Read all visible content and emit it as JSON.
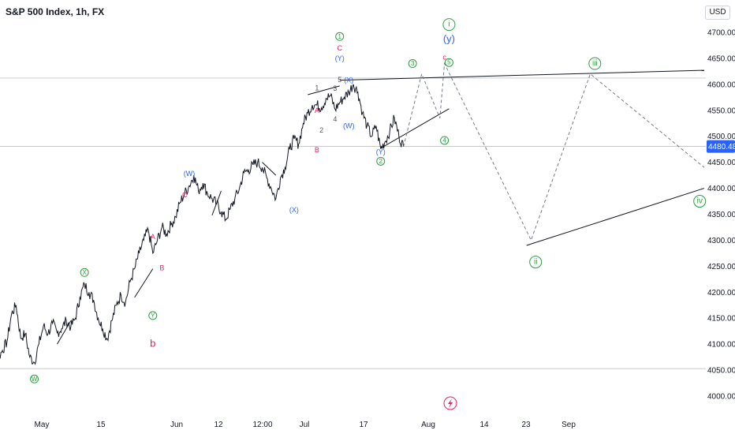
{
  "header": {
    "title": "S&P 500 Index, 1h, FX",
    "currency": "USD"
  },
  "chart_data": {
    "type": "line",
    "title": "S&P 500 Index, 1h, FX",
    "ylim": [
      3985,
      4710
    ],
    "y_ticks": [
      4000,
      4050,
      4100,
      4150,
      4200,
      4250,
      4300,
      4350,
      4400,
      4450,
      4500,
      4550,
      4600,
      4650,
      4700
    ],
    "x_ticks": [
      "May",
      "15",
      "Jun",
      "12",
      "12:00",
      "Jul",
      "17",
      "Aug",
      "14",
      "23",
      "Sep"
    ],
    "x_range": [
      "Apr 25",
      "Sep 30"
    ],
    "current_price": {
      "value": 4480.48,
      "label": "4480.48",
      "color": "#2962ff"
    },
    "reference_levels": [
      4612,
      4053
    ],
    "series": [
      {
        "values": [
          [
            "Apr 25",
            4145
          ],
          [
            "Apr 26",
            4120
          ],
          [
            "Apr 27",
            4090
          ],
          [
            "Apr 28",
            4072
          ],
          [
            "Apr 29",
            4088
          ],
          [
            "Apr 30",
            4105
          ],
          [
            "May 1",
            4158
          ],
          [
            "May 2",
            4175
          ],
          [
            "May 3",
            4112
          ],
          [
            "May 4",
            4120
          ],
          [
            "May 5",
            4075
          ],
          [
            "May 6",
            4065
          ],
          [
            "May 7",
            4100
          ],
          [
            "May 8",
            4135
          ],
          [
            "May 9",
            4120
          ],
          [
            "May 10",
            4140
          ],
          [
            "May 11",
            4122
          ],
          [
            "May 12",
            4130
          ],
          [
            "May 13",
            4145
          ],
          [
            "May 14",
            4133
          ],
          [
            "May 15",
            4150
          ],
          [
            "May 16",
            4190
          ],
          [
            "May 17",
            4215
          ],
          [
            "May 18",
            4200
          ],
          [
            "May 19",
            4185
          ],
          [
            "May 20",
            4150
          ],
          [
            "May 21",
            4130
          ],
          [
            "May 22",
            4110
          ],
          [
            "May 23",
            4145
          ],
          [
            "May 24",
            4175
          ],
          [
            "May 25",
            4195
          ],
          [
            "May 26",
            4180
          ],
          [
            "May 27",
            4220
          ],
          [
            "May 28",
            4245
          ],
          [
            "May 29",
            4275
          ],
          [
            "May 30",
            4300
          ],
          [
            "May 31",
            4320
          ],
          [
            "Jun 1",
            4275
          ],
          [
            "Jun 2",
            4300
          ],
          [
            "Jun 3",
            4325
          ],
          [
            "Jun 4",
            4312
          ],
          [
            "Jun 5",
            4330
          ],
          [
            "Jun 6",
            4345
          ],
          [
            "Jun 7",
            4373
          ],
          [
            "Jun 8",
            4390
          ],
          [
            "Jun 9",
            4405
          ],
          [
            "Jun 10",
            4425
          ],
          [
            "Jun 11",
            4395
          ],
          [
            "Jun 12",
            4410
          ],
          [
            "Jun 13",
            4390
          ],
          [
            "Jun 14",
            4380
          ],
          [
            "Jun 15",
            4370
          ],
          [
            "Jun 16",
            4355
          ],
          [
            "Jun 17",
            4340
          ],
          [
            "Jun 18",
            4360
          ],
          [
            "Jun 19",
            4380
          ],
          [
            "Jun 20",
            4400
          ],
          [
            "Jun 21",
            4430
          ],
          [
            "Jun 22",
            4435
          ],
          [
            "Jun 23",
            4445
          ],
          [
            "Jun 24",
            4450
          ],
          [
            "Jun 25",
            4440
          ],
          [
            "Jun 26",
            4420
          ],
          [
            "Jun 27",
            4400
          ],
          [
            "Jun 28",
            4380
          ],
          [
            "Jun 29",
            4420
          ],
          [
            "Jun 30",
            4440
          ],
          [
            "Jul 1",
            4475
          ],
          [
            "Jul 2",
            4495
          ],
          [
            "Jul 3",
            4485
          ],
          [
            "Jul 4",
            4525
          ],
          [
            "Jul 5",
            4545
          ],
          [
            "Jul 6",
            4560
          ],
          [
            "Jul 7",
            4560
          ],
          [
            "Jul 8",
            4555
          ],
          [
            "Jul 9",
            4573
          ],
          [
            "Jul 10",
            4578
          ],
          [
            "Jul 11",
            4552
          ],
          [
            "Jul 12",
            4565
          ],
          [
            "Jul 13",
            4575
          ],
          [
            "Jul 14",
            4585
          ],
          [
            "Jul 15",
            4600
          ],
          [
            "Jul 16",
            4585
          ],
          [
            "Jul 17",
            4545
          ],
          [
            "Jul 18",
            4520
          ],
          [
            "Jul 19",
            4500
          ],
          [
            "Jul 20",
            4520
          ],
          [
            "Jul 21",
            4476
          ],
          [
            "Jul 22",
            4490
          ],
          [
            "Jul 23",
            4510
          ],
          [
            "Jul 24",
            4535
          ],
          [
            "Jul 25",
            4500
          ],
          [
            "Jul 26",
            4480
          ]
        ]
      }
    ],
    "projection_dashed": [
      [
        "Jul 26",
        4480
      ],
      [
        "Jul 30",
        4620
      ],
      [
        "Aug 3",
        4535
      ],
      [
        "Aug 4",
        4640
      ],
      [
        "Aug 23",
        4300
      ],
      [
        "Sep 5",
        4620
      ],
      [
        "Sep 30",
        4440
      ]
    ]
  },
  "wave_labels": {
    "circled": [
      {
        "text": "W",
        "at": [
          "May 6",
          4033
        ],
        "color": "#2e9e41"
      },
      {
        "text": "X",
        "at": [
          "May 17",
          4238
        ],
        "color": "#2e9e41"
      },
      {
        "text": "Y",
        "at": [
          "Jun 1",
          4155
        ],
        "color": "#2e9e41"
      },
      {
        "text": "1",
        "at": [
          "Jul 12",
          4692
        ],
        "color": "#2e9e41"
      },
      {
        "text": "2",
        "at": [
          "Jul 21",
          4452
        ],
        "color": "#2e9e41"
      },
      {
        "text": "3",
        "at": [
          "Jul 28",
          4640
        ],
        "color": "#2e9e41"
      },
      {
        "text": "4",
        "at": [
          "Aug 4",
          4492
        ],
        "color": "#2e9e41"
      },
      {
        "text": "5",
        "at": [
          "Aug 5",
          4642
        ],
        "color": "#2e9e41"
      },
      {
        "text": "i",
        "at": [
          "Aug 5",
          4715
        ],
        "color": "#2e9e41"
      },
      {
        "text": "ii",
        "at": [
          "Aug 24",
          4258
        ],
        "color": "#2e9e41"
      },
      {
        "text": "iii",
        "at": [
          "Sep 6",
          4640
        ],
        "color": "#2e9e41"
      },
      {
        "text": "iv",
        "at": [
          "Sep 29",
          4375
        ],
        "color": "#2e9e41"
      }
    ],
    "plain": [
      {
        "text": "A",
        "at": [
          "Jun 1",
          4307
        ],
        "color": "#e91e63"
      },
      {
        "text": "B",
        "at": [
          "Jun 3",
          4247
        ],
        "color": "#e91e63"
      },
      {
        "text": "C",
        "at": [
          "Jun 8",
          4387
        ],
        "color": "#e91e63"
      },
      {
        "text": "b",
        "at": [
          "Jun 1",
          4102
        ],
        "color": "#e91e63"
      },
      {
        "text": "A",
        "at": [
          "Jul 7",
          4550
        ],
        "color": "#e91e63"
      },
      {
        "text": "B",
        "at": [
          "Jul 7",
          4474
        ],
        "color": "#e91e63"
      },
      {
        "text": "C",
        "at": [
          "Jul 12",
          4670
        ],
        "color": "#e91e63"
      },
      {
        "text": "c",
        "at": [
          "Aug 4",
          4652
        ],
        "color": "#e91e63"
      },
      {
        "text": "(W)",
        "at": [
          "Jun 9",
          4428
        ],
        "color": "#2962ff"
      },
      {
        "text": "(X)",
        "at": [
          "Jul 2",
          4358
        ],
        "color": "#2962ff"
      },
      {
        "text": "(Y)",
        "at": [
          "Jul 12",
          4650
        ],
        "color": "#2962ff"
      },
      {
        "text": "(X)",
        "at": [
          "Jul 14",
          4608
        ],
        "color": "#2962ff"
      },
      {
        "text": "(W)",
        "at": [
          "Jul 14",
          4520
        ],
        "color": "#2962ff"
      },
      {
        "text": "(Y)",
        "at": [
          "Jul 21",
          4470
        ],
        "color": "#2962ff"
      },
      {
        "text": "(y)",
        "at": [
          "Aug 5",
          4688
        ],
        "color": "#2962ff"
      },
      {
        "text": "1",
        "at": [
          "Jul 7",
          4593
        ],
        "color": "#555555"
      },
      {
        "text": "2",
        "at": [
          "Jul 8",
          4512
        ],
        "color": "#555555"
      },
      {
        "text": "3",
        "at": [
          "Jul 11",
          4592
        ],
        "color": "#555555"
      },
      {
        "text": "4",
        "at": [
          "Jul 11",
          4533
        ],
        "color": "#555555"
      },
      {
        "text": "5",
        "at": [
          "Jul 12",
          4609
        ],
        "color": "#555555"
      }
    ]
  },
  "trendlines": [
    [
      [
        "Jul 12",
        4608
      ],
      [
        "Sep 30",
        4627
      ]
    ],
    [
      [
        "Jul 21",
        4477
      ],
      [
        "Aug 5",
        4553
      ]
    ],
    [
      [
        "Aug 22",
        4290
      ],
      [
        "Sep 30",
        4400
      ]
    ],
    [
      [
        "May 11",
        4100
      ],
      [
        "May 14",
        4145
      ]
    ],
    [
      [
        "May 28",
        4190
      ],
      [
        "Jun 1",
        4245
      ]
    ],
    [
      [
        "Jul 5",
        4580
      ],
      [
        "Jul 12",
        4597
      ]
    ],
    [
      [
        "Jun 14",
        4348
      ],
      [
        "Jun 16",
        4395
      ]
    ],
    [
      [
        "Jun 25",
        4450
      ],
      [
        "Jun 28",
        4425
      ]
    ]
  ]
}
